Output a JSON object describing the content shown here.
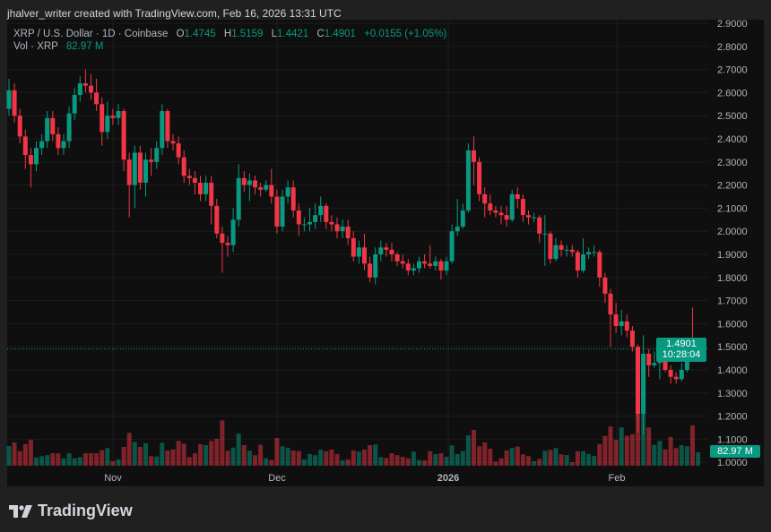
{
  "attribution": "jhalver_writer created with TradingView.com, Feb 16, 2026 13:31 UTC",
  "legend": {
    "symbol": "XRP / U.S. Dollar · 1D · Coinbase",
    "o_label": "O",
    "o": "1.4745",
    "h_label": "H",
    "h": "1.5159",
    "l_label": "L",
    "l": "1.4421",
    "c_label": "C",
    "c": "1.4901",
    "change": "+0.0155 (+1.05%)",
    "vol_label": "Vol · XRP",
    "vol": "82.97 M"
  },
  "price_label": {
    "price": "1.4901",
    "countdown": "10:28:04"
  },
  "volume_label": "82.97 M",
  "logo_text": "TradingView",
  "colors": {
    "up": "#089981",
    "down": "#f23645",
    "background": "#0f0f0f",
    "grid": "#1c1c1c",
    "text": "#b2b5be"
  },
  "chart_data": {
    "type": "candlestick",
    "interval": "1D",
    "ylim": [
      1.0,
      2.9
    ],
    "grid": true,
    "y_ticks": [
      "2.9000",
      "2.8000",
      "2.7000",
      "2.6000",
      "2.5000",
      "2.4000",
      "2.3000",
      "2.2000",
      "2.1000",
      "2.0000",
      "1.9000",
      "1.8000",
      "1.7000",
      "1.6000",
      "1.5000",
      "1.4000",
      "1.3000",
      "1.2000",
      "1.1000",
      "1.0000"
    ],
    "x_ticks": [
      "Nov",
      "Dec",
      "2026",
      "Feb"
    ],
    "open": [
      2.53,
      2.61,
      2.5,
      2.41,
      2.33,
      2.29,
      2.36,
      2.39,
      2.49,
      2.42,
      2.36,
      2.39,
      2.51,
      2.59,
      2.64,
      2.63,
      2.6,
      2.55,
      2.43,
      2.5,
      2.49,
      2.52,
      2.31,
      2.2,
      2.34,
      2.21,
      2.31,
      2.3,
      2.36,
      2.52,
      2.39,
      2.38,
      2.32,
      2.24,
      2.23,
      2.21,
      2.16,
      2.21,
      2.11,
      1.99,
      1.95,
      1.94,
      2.05,
      2.23,
      2.2,
      2.22,
      2.19,
      2.18,
      2.2,
      2.15,
      2.02,
      2.15,
      2.19,
      2.09,
      2.03,
      2.03,
      2.04,
      2.07,
      2.11,
      2.04,
      2.03,
      2.0,
      2.02,
      1.97,
      1.89,
      1.93,
      1.86,
      1.8,
      1.9,
      1.93,
      1.92,
      1.9,
      1.87,
      1.86,
      1.83,
      1.84,
      1.87,
      1.86,
      1.85,
      1.87,
      1.83,
      1.87,
      2.0,
      2.02,
      2.09,
      2.35,
      2.3,
      2.16,
      2.12,
      2.09,
      2.08,
      2.07,
      2.05,
      2.16,
      2.14,
      2.07,
      2.06,
      2.06,
      1.99,
      1.99,
      1.88,
      1.94,
      1.92,
      1.92,
      1.91,
      1.83,
      1.9,
      1.91,
      1.91,
      1.8,
      1.73,
      1.64,
      1.59,
      1.61,
      1.57,
      1.5,
      1.21,
      1.47,
      1.42,
      1.43,
      1.44,
      1.4,
      1.37,
      1.36,
      1.4,
      1.5,
      1.4745
    ],
    "high": [
      2.66,
      2.64,
      2.53,
      2.44,
      2.36,
      2.39,
      2.42,
      2.52,
      2.52,
      2.45,
      2.42,
      2.54,
      2.62,
      2.67,
      2.7,
      2.68,
      2.66,
      2.58,
      2.56,
      2.53,
      2.55,
      2.53,
      2.34,
      2.37,
      2.37,
      2.34,
      2.36,
      2.39,
      2.55,
      2.53,
      2.42,
      2.41,
      2.35,
      2.27,
      2.26,
      2.24,
      2.24,
      2.24,
      2.14,
      2.02,
      1.98,
      2.1,
      2.29,
      2.26,
      2.25,
      2.24,
      2.21,
      2.22,
      2.27,
      2.18,
      2.18,
      2.22,
      2.22,
      2.12,
      2.06,
      2.1,
      2.12,
      2.15,
      2.12,
      2.07,
      2.06,
      2.05,
      2.05,
      2.0,
      1.96,
      1.99,
      1.89,
      1.93,
      1.96,
      1.95,
      1.95,
      1.91,
      1.9,
      1.88,
      1.86,
      1.89,
      1.9,
      1.94,
      1.89,
      1.88,
      1.89,
      2.03,
      2.14,
      2.12,
      2.38,
      2.41,
      2.32,
      2.19,
      2.16,
      2.11,
      2.11,
      2.11,
      2.18,
      2.19,
      2.16,
      2.09,
      2.08,
      2.07,
      2.07,
      2.0,
      1.97,
      1.96,
      1.94,
      1.94,
      1.92,
      1.97,
      1.93,
      1.94,
      1.92,
      1.82,
      1.75,
      1.69,
      1.66,
      1.64,
      1.59,
      1.51,
      1.55,
      1.49,
      1.48,
      1.47,
      1.46,
      1.42,
      1.39,
      1.43,
      1.51,
      1.67,
      1.5159
    ],
    "low": [
      2.5,
      2.47,
      2.38,
      2.27,
      2.19,
      2.26,
      2.33,
      2.36,
      2.39,
      2.33,
      2.33,
      2.36,
      2.48,
      2.56,
      2.6,
      2.57,
      2.52,
      2.37,
      2.4,
      2.46,
      2.46,
      2.26,
      2.06,
      2.1,
      2.18,
      2.15,
      2.24,
      2.27,
      2.33,
      2.36,
      2.35,
      2.29,
      2.21,
      2.2,
      2.16,
      2.13,
      2.13,
      2.03,
      1.97,
      1.82,
      1.89,
      1.91,
      2.02,
      2.17,
      2.13,
      2.16,
      2.15,
      2.17,
      2.12,
      1.99,
      2.0,
      2.12,
      2.06,
      1.98,
      2.0,
      2.0,
      2.01,
      2.04,
      2.01,
      2.0,
      1.97,
      1.97,
      1.94,
      1.87,
      1.86,
      1.83,
      1.78,
      1.77,
      1.87,
      1.89,
      1.87,
      1.85,
      1.84,
      1.81,
      1.81,
      1.82,
      1.84,
      1.84,
      1.83,
      1.79,
      1.81,
      1.86,
      1.98,
      2.01,
      2.08,
      2.2,
      2.13,
      2.06,
      2.07,
      2.06,
      2.03,
      2.02,
      2.04,
      2.1,
      2.04,
      2.03,
      2.04,
      1.95,
      1.85,
      1.86,
      1.87,
      1.89,
      1.89,
      1.89,
      1.8,
      1.82,
      1.88,
      1.89,
      1.76,
      1.69,
      1.5,
      1.56,
      1.55,
      1.54,
      1.48,
      1.13,
      1.12,
      1.37,
      1.41,
      1.36,
      1.39,
      1.34,
      1.34,
      1.35,
      1.39,
      1.46,
      1.4421
    ],
    "close": [
      2.61,
      2.5,
      2.41,
      2.33,
      2.29,
      2.36,
      2.39,
      2.49,
      2.42,
      2.36,
      2.39,
      2.51,
      2.59,
      2.64,
      2.63,
      2.6,
      2.55,
      2.43,
      2.5,
      2.49,
      2.52,
      2.31,
      2.2,
      2.34,
      2.21,
      2.31,
      2.3,
      2.36,
      2.52,
      2.39,
      2.38,
      2.32,
      2.24,
      2.23,
      2.21,
      2.16,
      2.21,
      2.11,
      1.99,
      1.95,
      1.94,
      2.05,
      2.23,
      2.2,
      2.22,
      2.19,
      2.18,
      2.2,
      2.15,
      2.02,
      2.15,
      2.19,
      2.09,
      2.03,
      2.03,
      2.04,
      2.07,
      2.11,
      2.04,
      2.03,
      2.0,
      2.02,
      1.97,
      1.89,
      1.93,
      1.86,
      1.8,
      1.9,
      1.93,
      1.92,
      1.9,
      1.87,
      1.86,
      1.83,
      1.84,
      1.87,
      1.86,
      1.85,
      1.87,
      1.83,
      1.87,
      2.0,
      2.02,
      2.09,
      2.35,
      2.3,
      2.16,
      2.12,
      2.09,
      2.08,
      2.07,
      2.05,
      2.16,
      2.14,
      2.07,
      2.06,
      2.06,
      1.99,
      1.99,
      1.88,
      1.94,
      1.92,
      1.92,
      1.91,
      1.83,
      1.9,
      1.91,
      1.91,
      1.8,
      1.73,
      1.64,
      1.59,
      1.61,
      1.57,
      1.5,
      1.21,
      1.47,
      1.42,
      1.43,
      1.44,
      1.4,
      1.37,
      1.36,
      1.4,
      1.5,
      1.4745,
      1.4901
    ],
    "volume_unit": "M",
    "volume": [
      122,
      144,
      90,
      133,
      160,
      50,
      59,
      65,
      77,
      77,
      46,
      77,
      46,
      53,
      77,
      77,
      77,
      96,
      109,
      28,
      39,
      116,
      203,
      146,
      116,
      138,
      59,
      57,
      142,
      94,
      101,
      153,
      136,
      53,
      77,
      133,
      127,
      153,
      166,
      280,
      92,
      112,
      199,
      127,
      92,
      65,
      129,
      46,
      35,
      171,
      120,
      111,
      94,
      90,
      39,
      72,
      65,
      98,
      89,
      100,
      72,
      33,
      39,
      94,
      87,
      100,
      127,
      131,
      53,
      48,
      77,
      65,
      55,
      46,
      87,
      35,
      33,
      89,
      72,
      77,
      55,
      125,
      72,
      90,
      188,
      221,
      120,
      144,
      105,
      26,
      46,
      94,
      109,
      118,
      70,
      59,
      28,
      42,
      92,
      98,
      109,
      70,
      66,
      22,
      90,
      89,
      72,
      61,
      133,
      184,
      242,
      160,
      236,
      184,
      194,
      332,
      323,
      236,
      129,
      153,
      101,
      177,
      109,
      127,
      120,
      249,
      82.97
    ],
    "last_price": 1.4901
  }
}
